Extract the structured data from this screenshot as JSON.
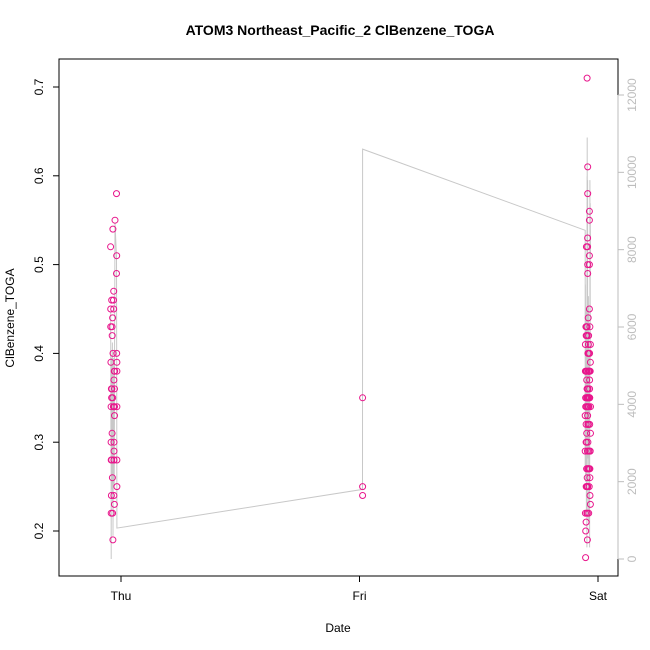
{
  "chart_data": {
    "type": "scatter",
    "title": "ATOM3 Northeast_Pacific_2 ClBenzene_TOGA",
    "xlabel": "Date",
    "ylabel": "ClBenzene_TOGA",
    "x_ticks": [
      "Thu",
      "Fri",
      "Sat"
    ],
    "xlim": [
      "2017-10-05T00:00",
      "2017-10-07T00:00"
    ],
    "ylim": [
      0.17,
      0.71
    ],
    "y_ticks": [
      0.2,
      0.3,
      0.4,
      0.5,
      0.6,
      0.7
    ],
    "y2lim": [
      0,
      12000
    ],
    "y2_ticks": [
      0,
      2000,
      4000,
      6000,
      8000,
      10000,
      12000
    ],
    "grid": false,
    "colors": {
      "points": "#e8168c",
      "line": "#c8c8c8",
      "right_axis": "#bdbdbd"
    },
    "series": [
      {
        "type": "scatter",
        "values": [
          [
            "2017-10-04T22:57",
            0.52
          ],
          [
            "2017-10-04T22:58",
            0.45
          ],
          [
            "2017-10-04T22:58",
            0.43
          ],
          [
            "2017-10-04T22:59",
            0.39
          ],
          [
            "2017-10-04T23:00",
            0.34
          ],
          [
            "2017-10-04T23:00",
            0.3
          ],
          [
            "2017-10-04T23:01",
            0.22
          ],
          [
            "2017-10-04T23:01",
            0.28
          ],
          [
            "2017-10-04T23:02",
            0.36
          ],
          [
            "2017-10-04T23:02",
            0.24
          ],
          [
            "2017-10-04T23:03",
            0.35
          ],
          [
            "2017-10-04T23:04",
            0.46
          ],
          [
            "2017-10-04T23:04",
            0.28
          ],
          [
            "2017-10-04T23:05",
            0.36
          ],
          [
            "2017-10-04T23:06",
            0.43
          ],
          [
            "2017-10-04T23:06",
            0.31
          ],
          [
            "2017-10-04T23:07",
            0.42
          ],
          [
            "2017-10-04T23:08",
            0.26
          ],
          [
            "2017-10-04T23:09",
            0.44
          ],
          [
            "2017-10-04T23:09",
            0.22
          ],
          [
            "2017-10-04T23:10",
            0.35
          ],
          [
            "2017-10-04T23:11",
            0.54
          ],
          [
            "2017-10-04T23:11",
            0.19
          ],
          [
            "2017-10-04T23:12",
            0.4
          ],
          [
            "2017-10-04T23:14",
            0.34
          ],
          [
            "2017-10-04T23:15",
            0.46
          ],
          [
            "2017-10-04T23:16",
            0.45
          ],
          [
            "2017-10-04T23:16",
            0.47
          ],
          [
            "2017-10-04T23:17",
            0.37
          ],
          [
            "2017-10-04T23:17",
            0.28
          ],
          [
            "2017-10-04T23:17",
            0.24
          ],
          [
            "2017-10-04T23:18",
            0.3
          ],
          [
            "2017-10-04T23:18",
            0.29
          ],
          [
            "2017-10-04T23:18",
            0.28
          ],
          [
            "2017-10-04T23:19",
            0.38
          ],
          [
            "2017-10-04T23:19",
            0.34
          ],
          [
            "2017-10-04T23:20",
            0.23
          ],
          [
            "2017-10-04T23:21",
            0.34
          ],
          [
            "2017-10-04T23:21",
            0.36
          ],
          [
            "2017-10-04T23:21",
            0.33
          ],
          [
            "2017-10-04T23:22",
            0.38
          ],
          [
            "2017-10-04T23:24",
            0.55
          ],
          [
            "2017-10-04T23:33",
            0.58
          ],
          [
            "2017-10-04T23:33",
            0.49
          ],
          [
            "2017-10-04T23:34",
            0.51
          ],
          [
            "2017-10-04T23:34",
            0.4
          ],
          [
            "2017-10-04T23:35",
            0.39
          ],
          [
            "2017-10-04T23:35",
            0.38
          ],
          [
            "2017-10-04T23:35",
            0.34
          ],
          [
            "2017-10-04T23:35",
            0.28
          ],
          [
            "2017-10-04T23:35",
            0.25
          ],
          [
            "2017-10-06T00:19",
            0.35
          ],
          [
            "2017-10-06T00:19",
            0.25
          ],
          [
            "2017-10-06T00:19",
            0.24
          ],
          [
            "2017-10-06T22:43",
            0.29
          ],
          [
            "2017-10-06T22:43",
            0.33
          ],
          [
            "2017-10-06T22:44",
            0.38
          ],
          [
            "2017-10-06T22:44",
            0.41
          ],
          [
            "2017-10-06T22:44",
            0.22
          ],
          [
            "2017-10-06T22:45",
            0.17
          ],
          [
            "2017-10-06T22:45",
            0.35
          ],
          [
            "2017-10-06T22:46",
            0.2
          ],
          [
            "2017-10-06T22:46",
            0.34
          ],
          [
            "2017-10-06T22:47",
            0.43
          ],
          [
            "2017-10-06T22:47",
            0.38
          ],
          [
            "2017-10-06T22:48",
            0.32
          ],
          [
            "2017-10-06T22:48",
            0.21
          ],
          [
            "2017-10-06T22:48",
            0.3
          ],
          [
            "2017-10-06T22:49",
            0.42
          ],
          [
            "2017-10-06T22:49",
            0.25
          ],
          [
            "2017-10-06T22:50",
            0.52
          ],
          [
            "2017-10-06T22:50",
            0.38
          ],
          [
            "2017-10-06T22:50",
            0.3
          ],
          [
            "2017-10-06T22:51",
            0.35
          ],
          [
            "2017-10-06T22:51",
            0.27
          ],
          [
            "2017-10-06T22:51",
            0.34
          ],
          [
            "2017-10-06T22:52",
            0.42
          ],
          [
            "2017-10-06T22:52",
            0.37
          ],
          [
            "2017-10-06T22:52",
            0.31
          ],
          [
            "2017-10-06T22:52",
            0.25
          ],
          [
            "2017-10-06T22:52",
            0.43
          ],
          [
            "2017-10-06T22:53",
            0.35
          ],
          [
            "2017-10-06T22:53",
            0.35
          ],
          [
            "2017-10-06T22:53",
            0.27
          ],
          [
            "2017-10-06T22:53",
            0.22
          ],
          [
            "2017-10-06T22:54",
            0.71
          ],
          [
            "2017-10-06T22:54",
            0.43
          ],
          [
            "2017-10-06T22:54",
            0.38
          ],
          [
            "2017-10-06T22:54",
            0.36
          ],
          [
            "2017-10-06T22:54",
            0.34
          ],
          [
            "2017-10-06T22:55",
            0.26
          ],
          [
            "2017-10-06T22:55",
            0.25
          ],
          [
            "2017-10-06T22:55",
            0.42
          ],
          [
            "2017-10-06T22:55",
            0.36
          ],
          [
            "2017-10-06T22:56",
            0.29
          ],
          [
            "2017-10-06T22:56",
            0.22
          ],
          [
            "2017-10-06T22:56",
            0.19
          ],
          [
            "2017-10-06T22:57",
            0.53
          ],
          [
            "2017-10-06T22:57",
            0.52
          ],
          [
            "2017-10-06T22:57",
            0.35
          ],
          [
            "2017-10-06T22:57",
            0.33
          ],
          [
            "2017-10-06T22:57",
            0.25
          ],
          [
            "2017-10-06T22:58",
            0.49
          ],
          [
            "2017-10-06T22:58",
            0.5
          ],
          [
            "2017-10-06T22:58",
            0.61
          ],
          [
            "2017-10-06T22:58",
            0.58
          ],
          [
            "2017-10-06T22:58",
            0.25
          ],
          [
            "2017-10-06T22:59",
            0.4
          ],
          [
            "2017-10-06T22:59",
            0.32
          ],
          [
            "2017-10-06T22:59",
            0.3
          ],
          [
            "2017-10-06T23:00",
            0.36
          ],
          [
            "2017-10-06T23:00",
            0.34
          ],
          [
            "2017-10-06T23:00",
            0.27
          ],
          [
            "2017-10-06T23:01",
            0.44
          ],
          [
            "2017-10-06T23:01",
            0.35
          ],
          [
            "2017-10-06T23:01",
            0.32
          ],
          [
            "2017-10-06T23:01",
            0.27
          ],
          [
            "2017-10-06T23:02",
            0.41
          ],
          [
            "2017-10-06T23:02",
            0.38
          ],
          [
            "2017-10-06T23:02",
            0.35
          ],
          [
            "2017-10-06T23:02",
            0.32
          ],
          [
            "2017-10-06T23:03",
            0.42
          ],
          [
            "2017-10-06T23:03",
            0.38
          ],
          [
            "2017-10-06T23:03",
            0.4
          ],
          [
            "2017-10-06T23:04",
            0.29
          ],
          [
            "2017-10-06T23:04",
            0.22
          ],
          [
            "2017-10-06T23:05",
            0.38
          ],
          [
            "2017-10-06T23:05",
            0.34
          ],
          [
            "2017-10-06T23:06",
            0.27
          ],
          [
            "2017-10-06T23:07",
            0.25
          ],
          [
            "2017-10-06T23:07",
            0.35
          ],
          [
            "2017-10-06T23:07",
            0.38
          ],
          [
            "2017-10-06T23:08",
            0.56
          ],
          [
            "2017-10-06T23:08",
            0.55
          ],
          [
            "2017-10-06T23:08",
            0.51
          ],
          [
            "2017-10-06T23:08",
            0.5
          ],
          [
            "2017-10-06T23:08",
            0.45
          ],
          [
            "2017-10-06T23:09",
            0.4
          ],
          [
            "2017-10-06T23:09",
            0.37
          ],
          [
            "2017-10-06T23:09",
            0.36
          ],
          [
            "2017-10-06T23:10",
            0.35
          ],
          [
            "2017-10-06T23:10",
            0.38
          ],
          [
            "2017-10-06T23:10",
            0.35
          ],
          [
            "2017-10-06T23:10",
            0.32
          ],
          [
            "2017-10-06T23:11",
            0.29
          ],
          [
            "2017-10-06T23:11",
            0.27
          ],
          [
            "2017-10-06T23:11",
            0.43
          ],
          [
            "2017-10-06T23:11",
            0.26
          ],
          [
            "2017-10-06T23:12",
            0.24
          ],
          [
            "2017-10-06T23:13",
            0.29
          ],
          [
            "2017-10-06T23:13",
            0.38
          ],
          [
            "2017-10-06T23:14",
            0.23
          ],
          [
            "2017-10-06T23:14",
            0.39
          ],
          [
            "2017-10-06T23:14",
            0.41
          ],
          [
            "2017-10-06T23:15",
            0.34
          ],
          [
            "2017-10-06T23:15",
            0.31
          ]
        ]
      },
      {
        "type": "line",
        "axis": "right",
        "values": [
          [
            "2017-10-04T22:58",
            6400
          ],
          [
            "2017-10-04T22:59",
            3000
          ],
          [
            "2017-10-04T23:00",
            3500
          ],
          [
            "2017-10-04T23:01",
            0
          ],
          [
            "2017-10-04T23:02",
            5200
          ],
          [
            "2017-10-04T23:03",
            1800
          ],
          [
            "2017-10-04T23:05",
            4800
          ],
          [
            "2017-10-04T23:06",
            2200
          ],
          [
            "2017-10-04T23:08",
            5600
          ],
          [
            "2017-10-04T23:09",
            1500
          ],
          [
            "2017-10-04T23:11",
            4500
          ],
          [
            "2017-10-04T23:12",
            600
          ],
          [
            "2017-10-04T23:14",
            3800
          ],
          [
            "2017-10-04T23:16",
            5200
          ],
          [
            "2017-10-04T23:17",
            2400
          ],
          [
            "2017-10-04T23:18",
            4600
          ],
          [
            "2017-10-04T23:19",
            1900
          ],
          [
            "2017-10-04T23:20",
            3400
          ],
          [
            "2017-10-04T23:21",
            5000
          ],
          [
            "2017-10-04T23:24",
            8700
          ],
          [
            "2017-10-04T23:33",
            7800
          ],
          [
            "2017-10-04T23:34",
            5000
          ],
          [
            "2017-10-04T23:35",
            800
          ],
          [
            "2017-10-06T00:18",
            1800
          ],
          [
            "2017-10-06T00:19",
            9000
          ],
          [
            "2017-10-06T00:19",
            10600
          ],
          [
            "2017-10-06T22:43",
            8500
          ],
          [
            "2017-10-06T22:43",
            2400
          ],
          [
            "2017-10-06T22:44",
            4500
          ],
          [
            "2017-10-06T22:44",
            7100
          ],
          [
            "2017-10-06T22:45",
            2000
          ],
          [
            "2017-10-06T22:46",
            5800
          ],
          [
            "2017-10-06T22:47",
            3300
          ],
          [
            "2017-10-06T22:48",
            6500
          ],
          [
            "2017-10-06T22:49",
            2700
          ],
          [
            "2017-10-06T22:49",
            5000
          ],
          [
            "2017-10-06T22:50",
            1200
          ],
          [
            "2017-10-06T22:51",
            4200
          ],
          [
            "2017-10-06T22:52",
            2000
          ],
          [
            "2017-10-06T22:52",
            5400
          ],
          [
            "2017-10-06T22:53",
            300
          ],
          [
            "2017-10-06T22:53",
            4900
          ],
          [
            "2017-10-06T22:54",
            9900
          ],
          [
            "2017-10-06T22:54",
            7000
          ],
          [
            "2017-10-06T22:55",
            1000
          ],
          [
            "2017-10-06T22:55",
            10900
          ],
          [
            "2017-10-06T22:56",
            5100
          ],
          [
            "2017-10-06T22:57",
            9800
          ],
          [
            "2017-10-06T22:57",
            4200
          ],
          [
            "2017-10-06T22:58",
            6000
          ],
          [
            "2017-10-06T22:59",
            2600
          ],
          [
            "2017-10-06T23:00",
            6500
          ],
          [
            "2017-10-06T23:01",
            3800
          ],
          [
            "2017-10-06T23:01",
            4600
          ],
          [
            "2017-10-06T23:02",
            6800
          ],
          [
            "2017-10-06T23:03",
            5200
          ],
          [
            "2017-10-06T23:04",
            1000
          ],
          [
            "2017-10-06T23:05",
            4200
          ],
          [
            "2017-10-06T23:06",
            2600
          ],
          [
            "2017-10-06T23:07",
            4900
          ],
          [
            "2017-10-06T23:07",
            2100
          ],
          [
            "2017-10-06T23:08",
            5400
          ],
          [
            "2017-10-06T23:08",
            700
          ],
          [
            "2017-10-06T23:09",
            3100
          ],
          [
            "2017-10-06T23:09",
            300
          ],
          [
            "2017-10-06T23:10",
            3000
          ],
          [
            "2017-10-06T23:11",
            6500
          ],
          [
            "2017-10-06T23:11",
            9800
          ],
          [
            "2017-10-06T23:12",
            5200
          ],
          [
            "2017-10-06T23:12",
            7600
          ],
          [
            "2017-10-06T23:13",
            5000
          ],
          [
            "2017-10-06T23:13",
            8000
          ],
          [
            "2017-10-06T23:13",
            9200
          ],
          [
            "2017-10-06T23:14",
            8200
          ],
          [
            "2017-10-06T23:14",
            8500
          ],
          [
            "2017-10-06T23:15",
            7800
          ]
        ]
      }
    ]
  }
}
